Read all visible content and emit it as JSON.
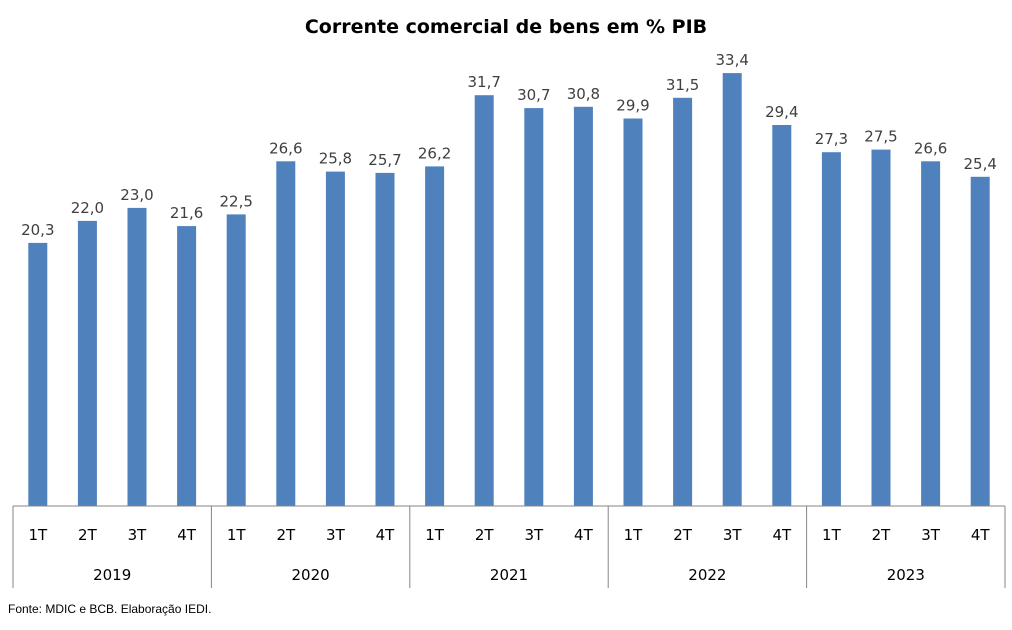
{
  "chart_data": {
    "type": "bar",
    "title": "Corrente comercial de bens em % PIB",
    "xlabel": "",
    "ylabel": "",
    "ylim": [
      0,
      34
    ],
    "grid": false,
    "legend": "none",
    "bar_color": "#4F81BD",
    "years": [
      "2019",
      "2020",
      "2021",
      "2022",
      "2023"
    ],
    "quarters": [
      "1T",
      "2T",
      "3T",
      "4T"
    ],
    "categories": [
      "1T 2019",
      "2T 2019",
      "3T 2019",
      "4T 2019",
      "1T 2020",
      "2T 2020",
      "3T 2020",
      "4T 2020",
      "1T 2021",
      "2T 2021",
      "3T 2021",
      "4T 2021",
      "1T 2022",
      "2T 2022",
      "3T 2022",
      "4T 2022",
      "1T 2023",
      "2T 2023",
      "3T 2023",
      "4T 2023"
    ],
    "values": [
      20.3,
      22.0,
      23.0,
      21.6,
      22.5,
      26.6,
      25.8,
      25.7,
      26.2,
      31.7,
      30.7,
      30.8,
      29.9,
      31.5,
      33.4,
      29.4,
      27.3,
      27.5,
      26.6,
      25.4
    ],
    "data_labels": [
      "20,3",
      "22,0",
      "23,0",
      "21,6",
      "22,5",
      "26,6",
      "25,8",
      "25,7",
      "26,2",
      "31,7",
      "30,7",
      "30,8",
      "29,9",
      "31,5",
      "33,4",
      "29,4",
      "27,3",
      "27,5",
      "26,6",
      "25,4"
    ]
  },
  "source": "Fonte: MDIC e BCB. Elaboração IEDI."
}
